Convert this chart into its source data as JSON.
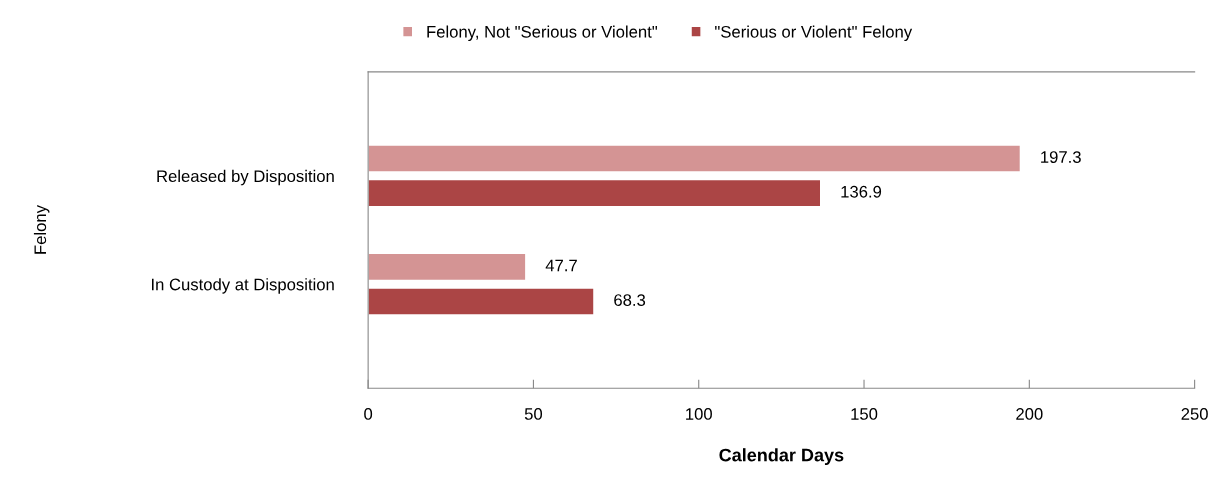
{
  "chart_data": {
    "type": "bar",
    "orientation": "horizontal",
    "xlabel": "Calendar Days",
    "annotations": [
      "Felony"
    ],
    "categories": [
      "Released by Disposition",
      "In Custody at Disposition"
    ],
    "series": [
      {
        "name": "Felony, Not \"Serious or Violent\"",
        "color": "#d49494",
        "values": [
          197.3,
          47.7
        ]
      },
      {
        "name": "\"Serious or Violent\" Felony",
        "color": "#ab4545",
        "values": [
          136.9,
          68.3
        ]
      }
    ],
    "xlim": [
      0,
      250
    ],
    "xticks": [
      0,
      50,
      100,
      150,
      200,
      250
    ],
    "data_labels": true,
    "grid": false,
    "legend": "top"
  }
}
